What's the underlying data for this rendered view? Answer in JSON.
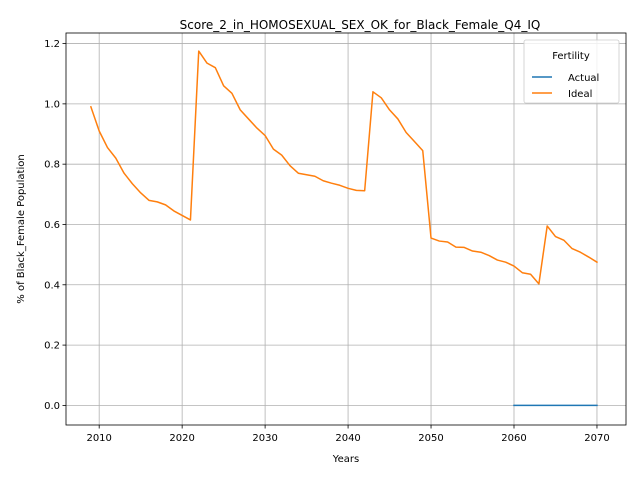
{
  "chart_data": {
    "type": "line",
    "title": "Score_2_in_HOMOSEXUAL_SEX_OK_for_Black_Female_Q4_IQ",
    "xlabel": "Years",
    "ylabel": "% of Black_Female Population",
    "xlim": [
      2006,
      2073.5
    ],
    "ylim": [
      -0.065,
      1.235
    ],
    "xticks": [
      2010,
      2020,
      2030,
      2040,
      2050,
      2060,
      2070
    ],
    "yticks": [
      0.0,
      0.2,
      0.4,
      0.6,
      0.8,
      1.0,
      1.2
    ],
    "ytick_labels": [
      "0.0",
      "0.2",
      "0.4",
      "0.6",
      "0.8",
      "1.0",
      "1.2"
    ],
    "grid": true,
    "legend": {
      "title": "Fertility",
      "placement": "top-right"
    },
    "series": [
      {
        "name": "Actual",
        "color": "#1f77b4",
        "x": [
          2060,
          2061,
          2062,
          2063,
          2064,
          2065,
          2066,
          2067,
          2068,
          2069,
          2070
        ],
        "y": [
          0,
          0,
          0,
          0,
          0,
          0,
          0,
          0,
          0,
          0,
          0
        ]
      },
      {
        "name": "Ideal",
        "color": "#ff7f0e",
        "x": [
          2009,
          2010,
          2011,
          2012,
          2013,
          2014,
          2015,
          2016,
          2017,
          2018,
          2019,
          2020,
          2021,
          2022,
          2023,
          2024,
          2025,
          2026,
          2027,
          2028,
          2029,
          2030,
          2031,
          2032,
          2033,
          2034,
          2035,
          2036,
          2037,
          2038,
          2039,
          2040,
          2041,
          2042,
          2043,
          2044,
          2045,
          2046,
          2047,
          2048,
          2049,
          2050,
          2051,
          2052,
          2053,
          2054,
          2055,
          2056,
          2057,
          2058,
          2059,
          2060,
          2061,
          2062,
          2063,
          2064,
          2065,
          2066,
          2067,
          2068,
          2069,
          2070
        ],
        "y": [
          0.99,
          0.91,
          0.855,
          0.82,
          0.77,
          0.735,
          0.705,
          0.68,
          0.675,
          0.665,
          0.645,
          0.63,
          0.615,
          1.175,
          1.135,
          1.12,
          1.06,
          1.035,
          0.98,
          0.95,
          0.92,
          0.895,
          0.85,
          0.83,
          0.795,
          0.77,
          0.765,
          0.76,
          0.745,
          0.737,
          0.73,
          0.72,
          0.713,
          0.712,
          1.04,
          1.02,
          0.98,
          0.95,
          0.905,
          0.875,
          0.845,
          0.555,
          0.545,
          0.542,
          0.525,
          0.524,
          0.512,
          0.508,
          0.497,
          0.482,
          0.475,
          0.462,
          0.44,
          0.435,
          0.403,
          0.595,
          0.56,
          0.548,
          0.52,
          0.508,
          0.492,
          0.475
        ]
      }
    ]
  }
}
